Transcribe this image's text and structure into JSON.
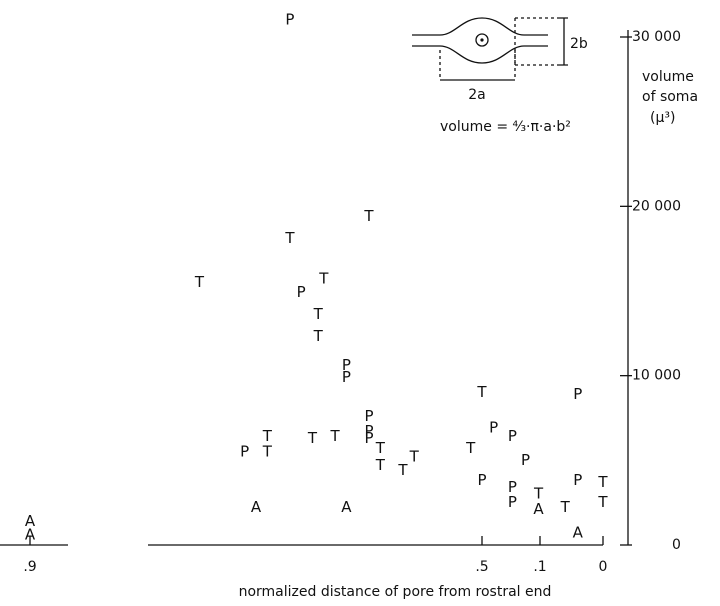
{
  "chart_data": {
    "type": "scatter",
    "x_label": "normalized distance of pore  from  rostral  end",
    "y_label": [
      "volume",
      "of soma",
      "(μ³)"
    ],
    "annotations": {
      "label_b": "2b",
      "label_a": "2a",
      "formula": "volume = ⁴⁄₃·π·a·b²"
    },
    "xticks": [
      {
        "value": 0.9,
        "label": ".9"
      },
      {
        "value": 0.5,
        "label": ".5"
      },
      {
        "value": 0.1,
        "label": ".1"
      },
      0
    ],
    "ylim": [
      0,
      30000
    ],
    "yticks": [
      0,
      {
        "value": 10000,
        "label": "10 000"
      },
      {
        "value": 20000,
        "label": "20 000"
      },
      {
        "value": 30000,
        "label": "30 000"
      }
    ],
    "series": [
      {
        "name": "P",
        "color": "#111111",
        "x": [
          0.67,
          0.66,
          0.62,
          0.62,
          0.6,
          0.6,
          0.6,
          0.71,
          0.5,
          0.42,
          0.29,
          0.2,
          0.29,
          0.29,
          0.04,
          0.04
        ],
        "values": [
          31000,
          14900,
          9900,
          10600,
          6300,
          7600,
          6700,
          5500,
          3800,
          6900,
          6400,
          5000,
          3400,
          2500,
          8900,
          3800
        ]
      },
      {
        "name": "T",
        "color": "#111111",
        "x": [
          0.75,
          0.67,
          0.64,
          0.645,
          0.645,
          0.6,
          0.69,
          0.69,
          0.65,
          0.63,
          0.59,
          0.59,
          0.57,
          0.56,
          0.51,
          0.5,
          0.11,
          0.06,
          0,
          0
        ],
        "values": [
          15500,
          18100,
          15700,
          13600,
          12300,
          19400,
          6400,
          5500,
          6300,
          6400,
          5700,
          4700,
          4400,
          5200,
          5700,
          9000,
          3000,
          2200,
          3700,
          2500
        ]
      },
      {
        "name": "A",
        "color": "#111111",
        "x": [
          0.9,
          0.9,
          0.7,
          0.62,
          0.11,
          0.04
        ],
        "values": [
          1400,
          600,
          2200,
          2200,
          2100,
          700
        ]
      }
    ]
  }
}
